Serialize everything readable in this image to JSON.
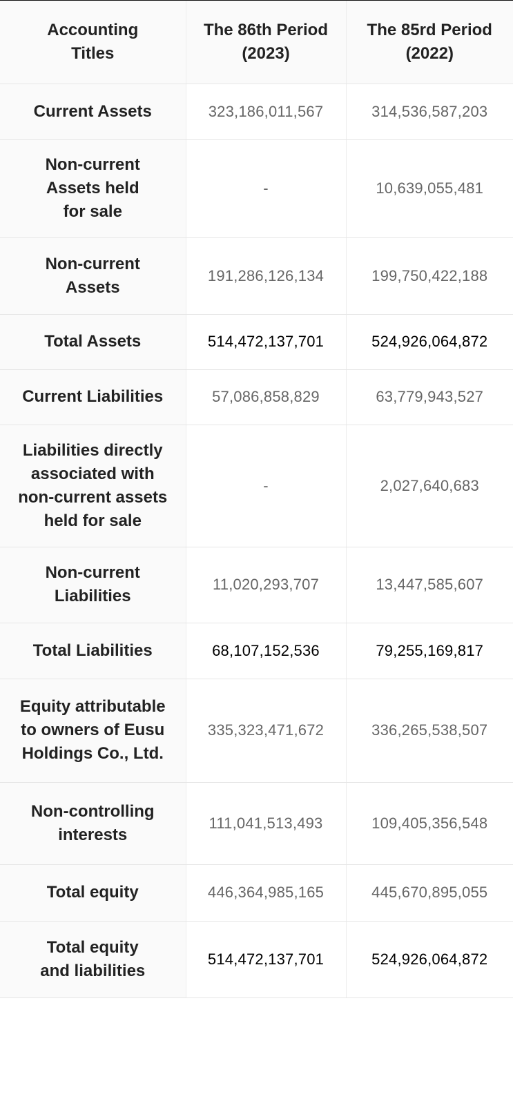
{
  "header": {
    "col1": [
      "Accounting",
      "Titles"
    ],
    "col2": [
      "The 86th Period",
      "(2023)"
    ],
    "col3": [
      "The 85rd Period",
      "(2022)"
    ]
  },
  "rows": [
    {
      "title": [
        "Current Assets"
      ],
      "v2023": "323,186,011,567",
      "v2022": "314,536,587,203",
      "total": false
    },
    {
      "title": [
        "Non-current",
        "Assets held",
        "for sale"
      ],
      "v2023": "-",
      "v2022": "10,639,055,481",
      "total": false
    },
    {
      "title": [
        "Non-current",
        "Assets"
      ],
      "v2023": "191,286,126,134",
      "v2022": "199,750,422,188",
      "total": false
    },
    {
      "title": [
        "Total Assets"
      ],
      "v2023": "514,472,137,701",
      "v2022": "524,926,064,872",
      "total": true
    },
    {
      "title": [
        "Current Liabilities"
      ],
      "v2023": "57,086,858,829",
      "v2022": "63,779,943,527",
      "total": false
    },
    {
      "title": [
        "Liabilities directly",
        "associated with",
        "non-current assets",
        "held for sale"
      ],
      "v2023": "-",
      "v2022": "2,027,640,683",
      "total": false
    },
    {
      "title": [
        "Non-current",
        "Liabilities"
      ],
      "v2023": "11,020,293,707",
      "v2022": "13,447,585,607",
      "total": false
    },
    {
      "title": [
        "Total Liabilities"
      ],
      "v2023": "68,107,152,536",
      "v2022": "79,255,169,817",
      "total": true
    },
    {
      "title": [
        "Equity attributable",
        "to owners of Eusu",
        "Holdings Co., Ltd."
      ],
      "v2023": "335,323,471,672",
      "v2022": "336,265,538,507",
      "total": false
    },
    {
      "title": [
        "Non-controlling",
        "interests"
      ],
      "v2023": "111,041,513,493",
      "v2022": "109,405,356,548",
      "total": false
    },
    {
      "title": [
        "Total equity"
      ],
      "v2023": "446,364,985,165",
      "v2022": "445,670,895,055",
      "total": false
    },
    {
      "title": [
        "Total equity",
        "and liabilities"
      ],
      "v2023": "514,472,137,701",
      "v2022": "524,926,064,872",
      "total": true
    }
  ]
}
